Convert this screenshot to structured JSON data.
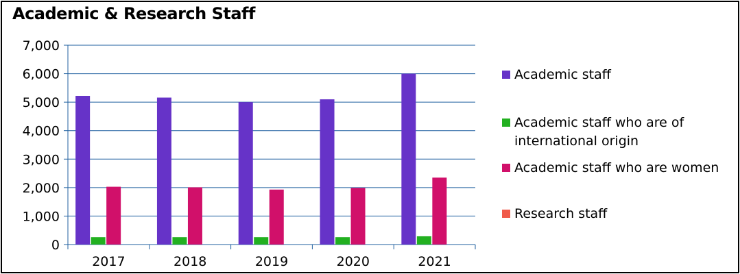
{
  "chart_data": {
    "type": "bar",
    "title": "Academic & Research Staff",
    "xlabel": "",
    "ylabel": "",
    "categories": [
      "2017",
      "2018",
      "2019",
      "2020",
      "2021"
    ],
    "ylim": [
      0,
      7000
    ],
    "yticks": [
      0,
      1000,
      2000,
      3000,
      4000,
      5000,
      6000,
      7000
    ],
    "ytick_labels": [
      "0",
      "1,000",
      "2,000",
      "3,000",
      "4,000",
      "5,000",
      "6,000",
      "7,000"
    ],
    "grid": true,
    "legend_position": "right",
    "series": [
      {
        "name": "Academic staff",
        "color": "#6633c8",
        "values": [
          5220,
          5160,
          5000,
          5100,
          6000
        ]
      },
      {
        "name": "Academic staff who are of international origin",
        "color": "#22b020",
        "values": [
          260,
          260,
          260,
          260,
          290
        ]
      },
      {
        "name": "Academic staff who are women",
        "color": "#d1106a",
        "values": [
          2030,
          2010,
          1930,
          1990,
          2350
        ]
      },
      {
        "name": "Research staff",
        "color": "#f05a4a",
        "values": [
          0,
          0,
          0,
          0,
          0
        ]
      }
    ]
  }
}
